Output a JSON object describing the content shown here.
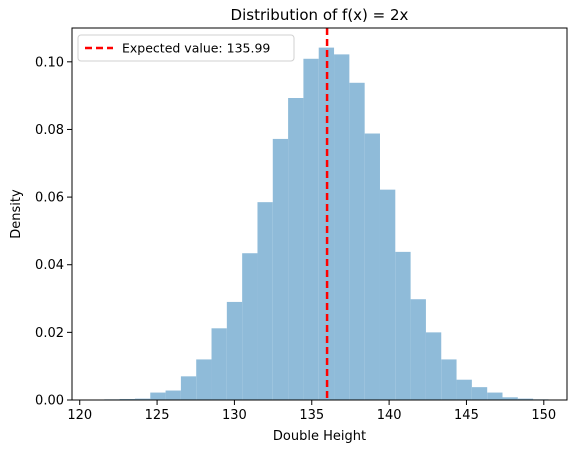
{
  "chart_data": {
    "type": "bar",
    "title": "Distribution of f(x) = 2x",
    "xlabel": "Double Height",
    "ylabel": "Density",
    "xlim": [
      119.5,
      151.5
    ],
    "ylim": [
      0,
      0.11
    ],
    "xticks": [
      120,
      125,
      130,
      135,
      140,
      145,
      150
    ],
    "xtick_labels": [
      "120",
      "125",
      "130",
      "135",
      "140",
      "145",
      "150"
    ],
    "yticks": [
      0,
      0.02,
      0.04,
      0.06,
      0.08,
      0.1
    ],
    "ytick_labels": [
      "0.00",
      "0.02",
      "0.04",
      "0.06",
      "0.08",
      "0.10"
    ],
    "bar_color": "#8fbbd9",
    "bins_start": 120.6,
    "bin_width": 0.99,
    "values": [
      0.0001,
      0.0002,
      0.0003,
      0.0004,
      0.0022,
      0.0028,
      0.007,
      0.012,
      0.0212,
      0.029,
      0.0434,
      0.0585,
      0.0772,
      0.0893,
      0.1009,
      0.1042,
      0.1022,
      0.0938,
      0.0788,
      0.0622,
      0.0438,
      0.0298,
      0.02,
      0.012,
      0.006,
      0.0038,
      0.0022,
      0.0008,
      0.0004,
      0.0002
    ],
    "reference_line": {
      "x": 135.99,
      "color": "#ff0000",
      "style": "dashed"
    },
    "legend": {
      "placement": "upper left",
      "label": "Expected value: 135.99"
    },
    "grid": false
  }
}
